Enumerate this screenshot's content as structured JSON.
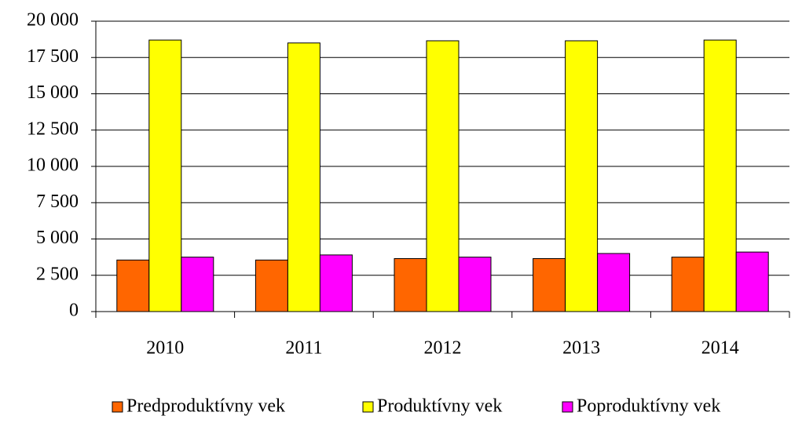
{
  "chart_data": {
    "type": "bar",
    "categories": [
      "2010",
      "2011",
      "2012",
      "2013",
      "2014"
    ],
    "series": [
      {
        "name": "Predproduktívny vek",
        "color": "#ff6600",
        "values": [
          3550,
          3550,
          3650,
          3650,
          3750
        ]
      },
      {
        "name": "Produktívny vek",
        "color": "#ffff00",
        "values": [
          18700,
          18500,
          18650,
          18650,
          18700
        ]
      },
      {
        "name": "Poproduktívny vek",
        "color": "#ff00ff",
        "values": [
          3750,
          3900,
          3750,
          4000,
          4100
        ]
      }
    ],
    "ylim": [
      0,
      20000
    ],
    "yticks": [
      0,
      {
        "value": 2500,
        "label": "2 500"
      },
      {
        "value": 5000,
        "label": "5 000"
      },
      {
        "value": 7500,
        "label": "7 500"
      },
      {
        "value": 10000,
        "label": "10 000"
      },
      {
        "value": 12500,
        "label": "12 500"
      },
      {
        "value": 15000,
        "label": "15 000"
      },
      {
        "value": 17500,
        "label": "17 500"
      },
      {
        "value": 20000,
        "label": "20 000"
      }
    ],
    "grid": true,
    "legend": "bottom"
  }
}
